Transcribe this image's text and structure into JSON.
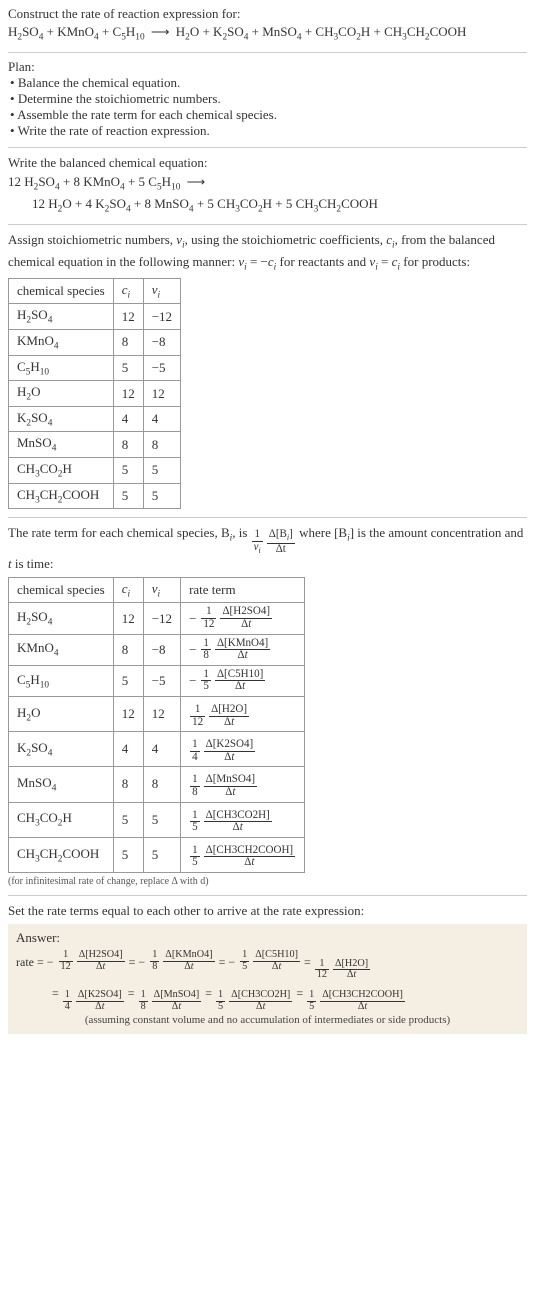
{
  "intro": {
    "prompt": "Construct the rate of reaction expression for:",
    "plan_title": "Plan:",
    "bullets": [
      "Balance the chemical equation.",
      "Determine the stoichiometric numbers.",
      "Assemble the rate term for each chemical species.",
      "Write the rate of reaction expression."
    ]
  },
  "unbalanced": {
    "lhs": [
      "H2SO4",
      "KMnO4",
      "C5H10"
    ],
    "rhs": [
      "H2O",
      "K2SO4",
      "MnSO4",
      "CH3CO2H",
      "CH3CH2COOH"
    ]
  },
  "balanced": {
    "heading": "Write the balanced chemical equation:",
    "lhs": [
      {
        "coef": "12",
        "sp": "H2SO4"
      },
      {
        "coef": "8",
        "sp": "KMnO4"
      },
      {
        "coef": "5",
        "sp": "C5H10"
      }
    ],
    "rhs": [
      {
        "coef": "12",
        "sp": "H2O"
      },
      {
        "coef": "4",
        "sp": "K2SO4"
      },
      {
        "coef": "8",
        "sp": "MnSO4"
      },
      {
        "coef": "5",
        "sp": "CH3CO2H"
      },
      {
        "coef": "5",
        "sp": "CH3CH2COOH"
      }
    ]
  },
  "stoich_text": {
    "p1a": "Assign stoichiometric numbers, ",
    "nu_i": "ν",
    "p1b": ", using the stoichiometric coefficients, ",
    "c_i": "c",
    "p1c": ", from the balanced chemical equation in the following manner: ",
    "rel_reac": " = −",
    "p1d": " for reactants and ",
    "rel_prod": " = ",
    "p1e": " for products:"
  },
  "table1": {
    "headers": [
      "chemical species",
      "cᵢ",
      "νᵢ"
    ],
    "rows": [
      {
        "sp": "H2SO4",
        "c": "12",
        "nu": "−12"
      },
      {
        "sp": "KMnO4",
        "c": "8",
        "nu": "−8"
      },
      {
        "sp": "C5H10",
        "c": "5",
        "nu": "−5"
      },
      {
        "sp": "H2O",
        "c": "12",
        "nu": "12"
      },
      {
        "sp": "K2SO4",
        "c": "4",
        "nu": "4"
      },
      {
        "sp": "MnSO4",
        "c": "8",
        "nu": "8"
      },
      {
        "sp": "CH3CO2H",
        "c": "5",
        "nu": "5"
      },
      {
        "sp": "CH3CH2COOH",
        "c": "5",
        "nu": "5"
      }
    ]
  },
  "rate_intro": {
    "a": "The rate term for each chemical species, B",
    "b": ", is ",
    "coef_top": "1",
    "coef_bot_sym": "ν",
    "delta_top_a": "Δ[B",
    "delta_top_b": "]",
    "delta_bot": "Δt",
    "c": " where [B",
    "d": "] is the amount concentration and ",
    "t": "t",
    "e": " is time:"
  },
  "table2": {
    "headers": [
      "chemical species",
      "cᵢ",
      "νᵢ",
      "rate term"
    ],
    "rows": [
      {
        "sp": "H2SO4",
        "c": "12",
        "nu": "−12",
        "neg": true,
        "den": "12",
        "dtop": "Δ[H2SO4]"
      },
      {
        "sp": "KMnO4",
        "c": "8",
        "nu": "−8",
        "neg": true,
        "den": "8",
        "dtop": "Δ[KMnO4]"
      },
      {
        "sp": "C5H10",
        "c": "5",
        "nu": "−5",
        "neg": true,
        "den": "5",
        "dtop": "Δ[C5H10]"
      },
      {
        "sp": "H2O",
        "c": "12",
        "nu": "12",
        "neg": false,
        "den": "12",
        "dtop": "Δ[H2O]"
      },
      {
        "sp": "K2SO4",
        "c": "4",
        "nu": "4",
        "neg": false,
        "den": "4",
        "dtop": "Δ[K2SO4]"
      },
      {
        "sp": "MnSO4",
        "c": "8",
        "nu": "8",
        "neg": false,
        "den": "8",
        "dtop": "Δ[MnSO4]"
      },
      {
        "sp": "CH3CO2H",
        "c": "5",
        "nu": "5",
        "neg": false,
        "den": "5",
        "dtop": "Δ[CH3CO2H]"
      },
      {
        "sp": "CH3CH2COOH",
        "c": "5",
        "nu": "5",
        "neg": false,
        "den": "5",
        "dtop": "Δ[CH3CH2COOH]"
      }
    ],
    "footnote": "(for infinitesimal rate of change, replace Δ with d)"
  },
  "final": {
    "heading": "Set the rate terms equal to each other to arrive at the rate expression:",
    "answer_label": "Answer:",
    "rate_label": "rate",
    "note": "(assuming constant volume and no accumulation of intermediates or side products)"
  },
  "colors": {
    "answer_bg": "#f4efe2",
    "border": "#999999",
    "hr": "#cccccc"
  }
}
